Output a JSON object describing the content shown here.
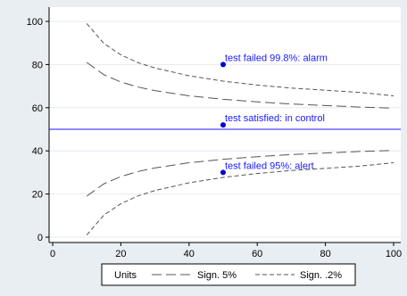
{
  "chart_data": {
    "type": "line",
    "xlim": [
      0,
      100
    ],
    "ylim": [
      0,
      100
    ],
    "x_ticks": [
      0,
      20,
      40,
      60,
      80,
      100
    ],
    "y_ticks": [
      0,
      20,
      40,
      60,
      80,
      100
    ],
    "grid": "horizontal",
    "reference_line": {
      "y": 50,
      "color": "#1a1aff"
    },
    "series": [
      {
        "name": "Sign. 5%",
        "style": "long-dash",
        "color": "#555555",
        "x": [
          10,
          15,
          20,
          25,
          30,
          40,
          50,
          60,
          70,
          80,
          90,
          100
        ],
        "upper": [
          81,
          75.3,
          71.9,
          69.6,
          67.9,
          65.5,
          63.9,
          62.7,
          61.7,
          61.0,
          60.3,
          59.8
        ],
        "lower": [
          19,
          24.7,
          28.1,
          30.4,
          32.1,
          34.5,
          36.1,
          37.3,
          38.3,
          39.0,
          39.7,
          40.2
        ]
      },
      {
        "name": "Sign. .2%",
        "style": "short-dash",
        "color": "#555555",
        "x": [
          10,
          15,
          20,
          25,
          30,
          40,
          50,
          60,
          70,
          80,
          90,
          100
        ],
        "upper": [
          99,
          89.8,
          84.5,
          80.9,
          78.4,
          74.8,
          72.3,
          70.5,
          69.1,
          68.1,
          67.1,
          65.5
        ],
        "lower": [
          1,
          10.2,
          15.5,
          19.1,
          21.6,
          25.2,
          27.7,
          29.5,
          30.9,
          31.9,
          32.9,
          34.5
        ]
      }
    ],
    "points": [
      {
        "x": 50,
        "y": 80,
        "label": "test failed 99.8%: alarm"
      },
      {
        "x": 50,
        "y": 52,
        "label": "test satisfied: in control"
      },
      {
        "x": 50,
        "y": 30,
        "label": "test failed 95%: alert"
      }
    ],
    "legend": {
      "position": "bottom",
      "entries": [
        {
          "label": "Units",
          "style": "none"
        },
        {
          "label": "Sign. 5%",
          "style": "long-dash"
        },
        {
          "label": "Sign. .2%",
          "style": "short-dash"
        }
      ]
    },
    "point_color": "#0000cc"
  }
}
